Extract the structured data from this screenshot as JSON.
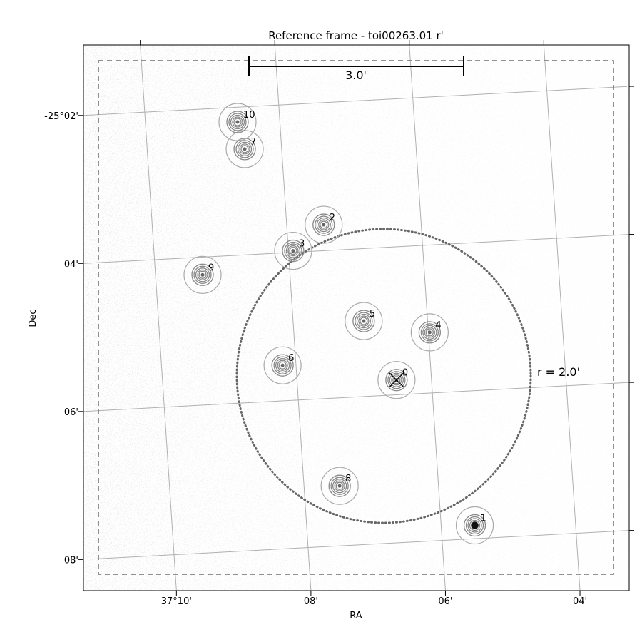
{
  "chart_data": {
    "type": "scatter",
    "title": "Reference frame - toi00263.01 r'",
    "xlabel": "RA",
    "ylabel": "Dec",
    "x_tick_labels": [
      {
        "ra": 10,
        "label": "37°10'"
      },
      {
        "ra": 8,
        "label": "08'"
      },
      {
        "ra": 6,
        "label": "06'"
      },
      {
        "ra": 4,
        "label": "04'"
      }
    ],
    "y_tick_labels": [
      {
        "dec": 2,
        "label": "-25°02'"
      },
      {
        "dec": 4,
        "label": "04'"
      },
      {
        "dec": 6,
        "label": "06'"
      },
      {
        "dec": 8,
        "label": "08'"
      }
    ],
    "x_grid_ra": [
      10,
      8,
      6,
      4
    ],
    "y_grid_dec": [
      2,
      4,
      6,
      8
    ],
    "grid": true,
    "scale_bar_label": "3.0'",
    "aperture_radius_label": "r = 2.0'",
    "target_id": "0",
    "stars": [
      {
        "id": "0",
        "ra": 6.52,
        "dec": 5.8
      },
      {
        "id": "1",
        "ra": 5.5,
        "dec": 7.82
      },
      {
        "id": "2",
        "ra": 7.45,
        "dec": 3.65
      },
      {
        "id": "3",
        "ra": 7.93,
        "dec": 3.98
      },
      {
        "id": "4",
        "ra": 5.98,
        "dec": 5.18
      },
      {
        "id": "5",
        "ra": 6.95,
        "dec": 4.98
      },
      {
        "id": "6",
        "ra": 8.2,
        "dec": 5.52
      },
      {
        "id": "7",
        "ra": 8.55,
        "dec": 2.57
      },
      {
        "id": "8",
        "ra": 7.47,
        "dec": 7.19
      },
      {
        "id": "9",
        "ra": 9.3,
        "dec": 4.24
      },
      {
        "id": "10",
        "ra": 8.63,
        "dec": 2.2
      }
    ],
    "colors": {
      "grid": "#b0b0b0",
      "frame": "#000000",
      "dashed_box": "#6e6e6e",
      "aperture": "#666666",
      "contour": "#888888"
    }
  }
}
